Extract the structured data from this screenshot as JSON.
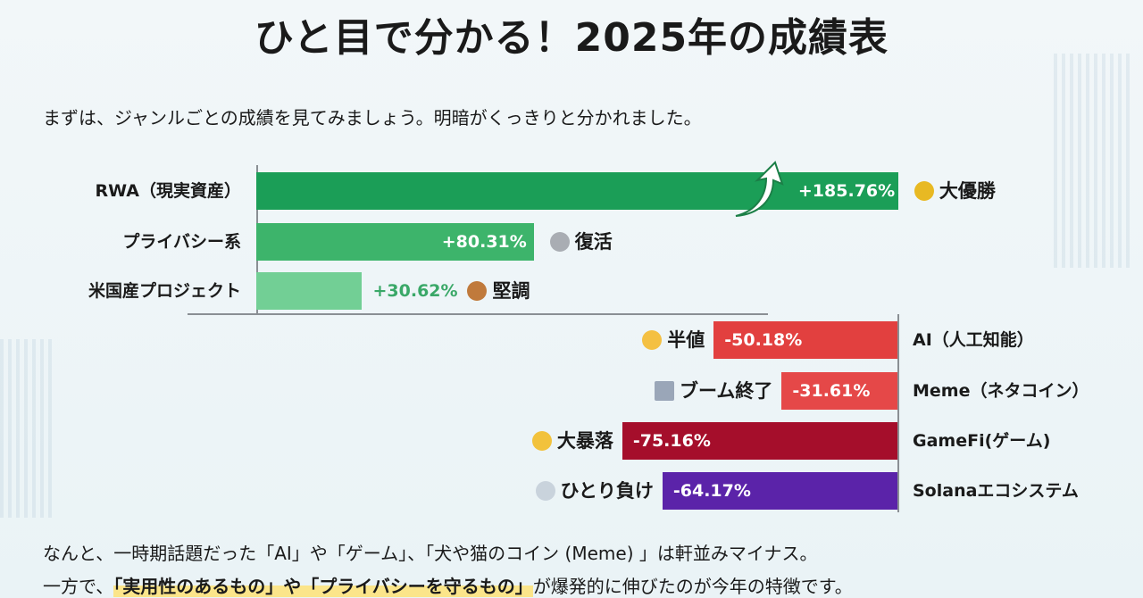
{
  "title": "ひと目で分かる！2025年の成績表",
  "intro": "まずは、ジャンルごとの成績を見てみましょう。明暗がくっきりと分かれました。",
  "chart_data": {
    "type": "bar",
    "orientation": "horizontal-diverging",
    "unit": "%",
    "categories": [
      "RWA（現実資産）",
      "プライバシー系",
      "米国産プロジェクト",
      "AI（人工知能）",
      "Meme（ネタコイン）",
      "GameFi(ゲーム)",
      "Solanaエコシステム"
    ],
    "values": [
      185.76,
      80.31,
      30.62,
      -50.18,
      -31.61,
      -75.16,
      -64.17
    ],
    "value_labels": [
      "+185.76%",
      "+80.31%",
      "+30.62%",
      "-50.18%",
      "-31.61%",
      "-75.16%",
      "-64.17%"
    ],
    "tags": [
      "大優勝",
      "復活",
      "堅調",
      "半値",
      "ブーム終了",
      "大暴落",
      "ひとり負け"
    ],
    "tag_icons": [
      "trophy-icon",
      "silver-medal-icon",
      "bronze-medal-icon",
      "fearful-face-icon",
      "chart-decreasing-icon",
      "crying-face-icon",
      "rain-cloud-icon"
    ],
    "colors": [
      "#1b9e57",
      "#3db46b",
      "#72cf95",
      "#e2403f",
      "#e54848",
      "#a50e2b",
      "#5b23a9"
    ]
  },
  "footer": {
    "line1": "なんと、一時期話題だった「AI」や「ゲーム」、「犬や猫のコイン (Meme) 」は軒並みマイナス。",
    "line2_pre": "一方で、",
    "line2_hl": "「実用性のあるもの」や「プライバシーを守るもの」",
    "line2_post": "が爆発的に伸びたのが今年の特徴です。"
  }
}
